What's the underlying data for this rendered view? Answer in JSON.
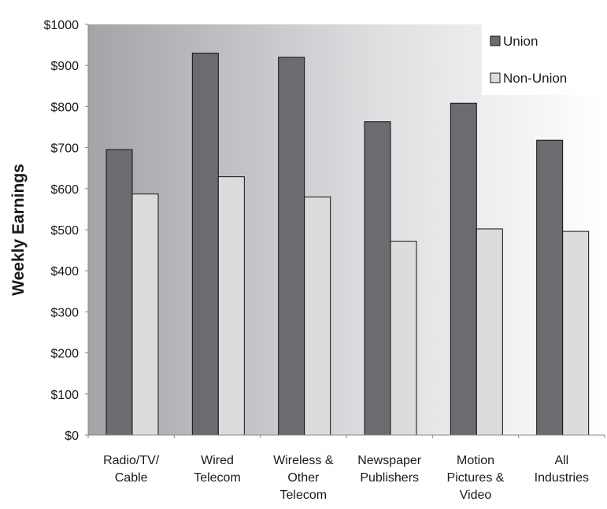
{
  "chart_data": {
    "type": "bar",
    "ylabel": "Weekly Earnings",
    "ylim": [
      0,
      1000
    ],
    "yticks": [
      "$0",
      "$100",
      "$200",
      "$300",
      "$400",
      "$500",
      "$600",
      "$700",
      "$800",
      "$900",
      "$1000"
    ],
    "categories": [
      [
        "Radio/TV/",
        "Cable"
      ],
      [
        "Wired",
        "Telecom"
      ],
      [
        "Wireless &",
        "Other",
        "Telecom"
      ],
      [
        "Newspaper",
        "Publishers"
      ],
      [
        "Motion",
        "Pictures &",
        "Video"
      ],
      [
        "All",
        "Industries"
      ]
    ],
    "series": [
      {
        "name": "Union",
        "color": "#6b6b70",
        "values": [
          695,
          930,
          920,
          763,
          808,
          718
        ]
      },
      {
        "name": "Non-Union",
        "color": "#dcdcdc",
        "values": [
          587,
          629,
          580,
          472,
          502,
          496
        ]
      }
    ],
    "legend": "top-right",
    "grid": false
  }
}
